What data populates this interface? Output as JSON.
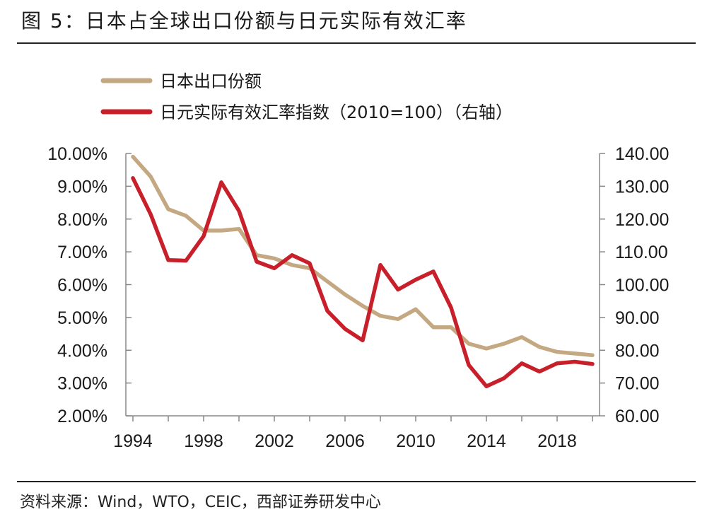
{
  "figure": {
    "title": "图 5：日本占全球出口份额与日元实际有效汇率",
    "source": "资料来源：Wind，WTO，CEIC，西部证券研发中心"
  },
  "chart_data": {
    "type": "line",
    "x": [
      1994,
      1995,
      1996,
      1997,
      1998,
      1999,
      2000,
      2001,
      2002,
      2003,
      2004,
      2005,
      2006,
      2007,
      2008,
      2009,
      2010,
      2011,
      2012,
      2013,
      2014,
      2015,
      2016,
      2017,
      2018,
      2019,
      2020
    ],
    "x_ticks": [
      "1994",
      "1998",
      "2002",
      "2006",
      "2010",
      "2014",
      "2018"
    ],
    "x_tick_values": [
      1994,
      1998,
      2002,
      2006,
      2010,
      2014,
      2018
    ],
    "y_left": {
      "ticks": [
        "10.00%",
        "9.00%",
        "8.00%",
        "7.00%",
        "6.00%",
        "5.00%",
        "4.00%",
        "3.00%",
        "2.00%"
      ],
      "tick_values": [
        10,
        9,
        8,
        7,
        6,
        5,
        4,
        3,
        2
      ],
      "ylim": [
        2,
        10
      ]
    },
    "y_right": {
      "ticks": [
        "140.00",
        "130.00",
        "120.00",
        "110.00",
        "100.00",
        "90.00",
        "80.00",
        "70.00",
        "60.00"
      ],
      "tick_values": [
        140,
        130,
        120,
        110,
        100,
        90,
        80,
        70,
        60
      ],
      "ylim": [
        60,
        140
      ]
    },
    "series": [
      {
        "name": "日本出口份额",
        "axis": "left",
        "color": "#c4a882",
        "values": [
          9.9,
          9.3,
          8.3,
          8.1,
          7.65,
          7.65,
          7.7,
          6.9,
          6.8,
          6.6,
          6.5,
          6.1,
          5.7,
          5.35,
          5.05,
          4.95,
          5.25,
          4.7,
          4.7,
          4.2,
          4.05,
          4.2,
          4.4,
          4.1,
          3.95,
          3.9,
          3.85
        ]
      },
      {
        "name": "日元实际有效汇率指数（2010=100）（右轴）",
        "axis": "right",
        "color": "#c8202a",
        "values": [
          132.5,
          121.5,
          107.5,
          107.3,
          114.8,
          131.2,
          122.5,
          107,
          105,
          109,
          106.5,
          92,
          86.5,
          83,
          106,
          98.5,
          101.5,
          104,
          93,
          75.5,
          69,
          71.5,
          76,
          73.5,
          76,
          76.5,
          75.8
        ]
      }
    ]
  }
}
